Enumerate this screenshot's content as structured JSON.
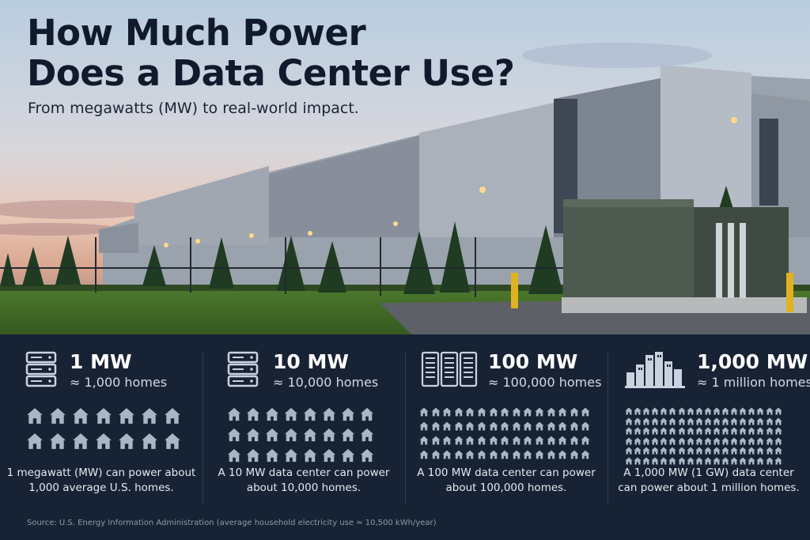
{
  "hero": {
    "title": "How Much Power\nDoes a Data Center Use?",
    "subtitle": "From megawatts (MW) to real-world impact."
  },
  "columns": [
    {
      "icon": "server-rack-icon",
      "mw": "1 MW",
      "homes": "≈ 1,000 homes",
      "home_icon_count": 14,
      "description": "1 megawatt (MW) can power about 1,000 average U.S. homes."
    },
    {
      "icon": "server-rack-icon",
      "mw": "10 MW",
      "homes": "≈ 10,000 homes",
      "home_icon_count": 24,
      "description": "A 10 MW data center can power about 10,000 homes."
    },
    {
      "icon": "server-racks-icon",
      "mw": "100 MW",
      "homes": "≈ 100,000 homes",
      "home_icon_count": 60,
      "description": "A 100 MW data center can power about 100,000 homes."
    },
    {
      "icon": "city-skyline-icon",
      "mw": "1,000 MW",
      "homes": "≈ 1 million homes",
      "home_icon_count": 108,
      "description": "A 1,000 MW (1 GW) data center can power about 1 million homes."
    }
  ],
  "source": "Source: U.S. Energy Information Administration (average household electricity use ≈ 10,500 kWh/year)",
  "colors": {
    "panel_bg": "#172334",
    "home_icon": "#a9b6c6",
    "title": "#111a2c"
  }
}
